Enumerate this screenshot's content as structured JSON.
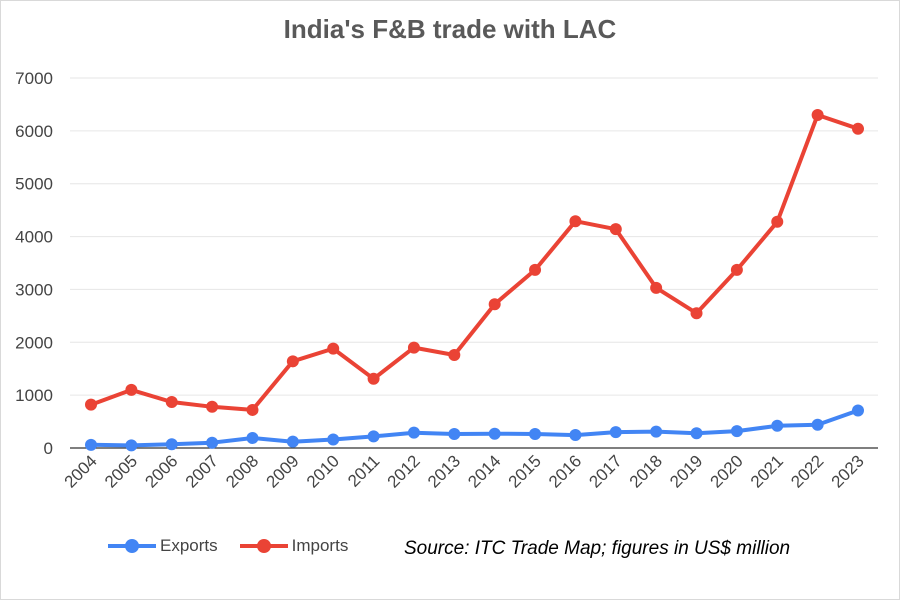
{
  "colors": {
    "exports": "#4285f4",
    "imports": "#ea4335",
    "grid": "#e6e6e6",
    "axis": "#333333"
  },
  "source_note": "Source: ITC Trade Map; figures in US$ million",
  "chart_data": {
    "type": "line",
    "title": "India's F&B trade with LAC",
    "xlabel": "",
    "ylabel": "",
    "ylim": [
      0,
      7000
    ],
    "yticks": [
      0,
      1000,
      2000,
      3000,
      4000,
      5000,
      6000,
      7000
    ],
    "grid": true,
    "legend_position": "bottom-left",
    "categories": [
      "2004",
      "2005",
      "2006",
      "2007",
      "2008",
      "2009",
      "2010",
      "2011",
      "2012",
      "2013",
      "2014",
      "2015",
      "2016",
      "2017",
      "2018",
      "2019",
      "2020",
      "2021",
      "2022",
      "2023"
    ],
    "series": [
      {
        "name": "Exports",
        "color_key": "exports",
        "values": [
          60,
          50,
          70,
          100,
          190,
          120,
          160,
          220,
          290,
          265,
          270,
          265,
          245,
          300,
          310,
          280,
          320,
          420,
          440,
          710
        ]
      },
      {
        "name": "Imports",
        "color_key": "imports",
        "values": [
          820,
          1100,
          870,
          780,
          720,
          1640,
          1880,
          1310,
          1900,
          1760,
          2720,
          3370,
          4290,
          4140,
          3030,
          2550,
          3370,
          4280,
          6300,
          6040
        ]
      }
    ]
  }
}
